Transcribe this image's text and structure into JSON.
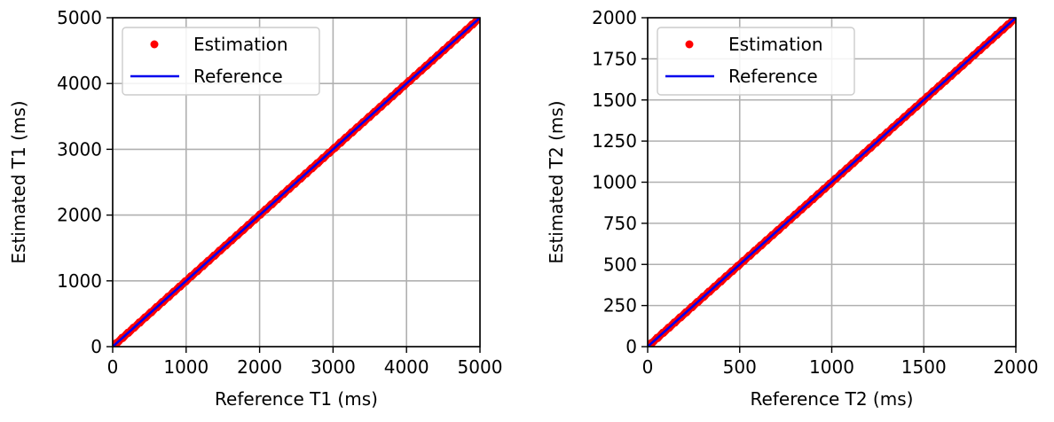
{
  "chart_data": [
    {
      "type": "scatter",
      "title": "",
      "xlabel": "Reference T1 (ms)",
      "ylabel": "Estimated T1 (ms)",
      "xlim": [
        0,
        5000
      ],
      "ylim": [
        0,
        5000
      ],
      "xticks": [
        0,
        1000,
        2000,
        3000,
        4000,
        5000
      ],
      "yticks": [
        0,
        1000,
        2000,
        3000,
        4000,
        5000
      ],
      "grid": true,
      "legend": {
        "location": "top-left",
        "entries": [
          "Estimation",
          "Reference"
        ]
      },
      "series": [
        {
          "name": "Estimation",
          "kind": "scatter",
          "color": "#ff0000",
          "x": [
            0,
            250,
            500,
            750,
            1000,
            1250,
            1500,
            1750,
            2000,
            2250,
            2500,
            2750,
            3000,
            3250,
            3500,
            3750,
            4000,
            4250,
            4500,
            4750,
            5000
          ],
          "y": [
            0,
            250,
            500,
            750,
            1000,
            1250,
            1500,
            1750,
            2000,
            2250,
            2500,
            2750,
            3000,
            3250,
            3500,
            3750,
            4000,
            4250,
            4500,
            4750,
            5000
          ]
        },
        {
          "name": "Reference",
          "kind": "line",
          "color": "#0000ee",
          "x": [
            0,
            5000
          ],
          "y": [
            0,
            5000
          ]
        }
      ]
    },
    {
      "type": "scatter",
      "title": "",
      "xlabel": "Reference T2 (ms)",
      "ylabel": "Estimated T2 (ms)",
      "xlim": [
        0,
        2000
      ],
      "ylim": [
        0,
        2000
      ],
      "xticks": [
        0,
        500,
        1000,
        1500,
        2000
      ],
      "yticks": [
        0,
        250,
        500,
        750,
        1000,
        1250,
        1500,
        1750,
        2000
      ],
      "grid": true,
      "legend": {
        "location": "top-left",
        "entries": [
          "Estimation",
          "Reference"
        ]
      },
      "series": [
        {
          "name": "Estimation",
          "kind": "scatter",
          "color": "#ff0000",
          "x": [
            0,
            100,
            200,
            300,
            400,
            500,
            600,
            700,
            800,
            900,
            1000,
            1100,
            1200,
            1300,
            1400,
            1500,
            1600,
            1700,
            1800,
            1900,
            2000
          ],
          "y": [
            0,
            100,
            200,
            300,
            400,
            500,
            600,
            700,
            800,
            900,
            1000,
            1100,
            1200,
            1300,
            1400,
            1500,
            1600,
            1700,
            1800,
            1900,
            2000
          ]
        },
        {
          "name": "Reference",
          "kind": "line",
          "color": "#0000ee",
          "x": [
            0,
            2000
          ],
          "y": [
            0,
            2000
          ]
        }
      ]
    }
  ]
}
